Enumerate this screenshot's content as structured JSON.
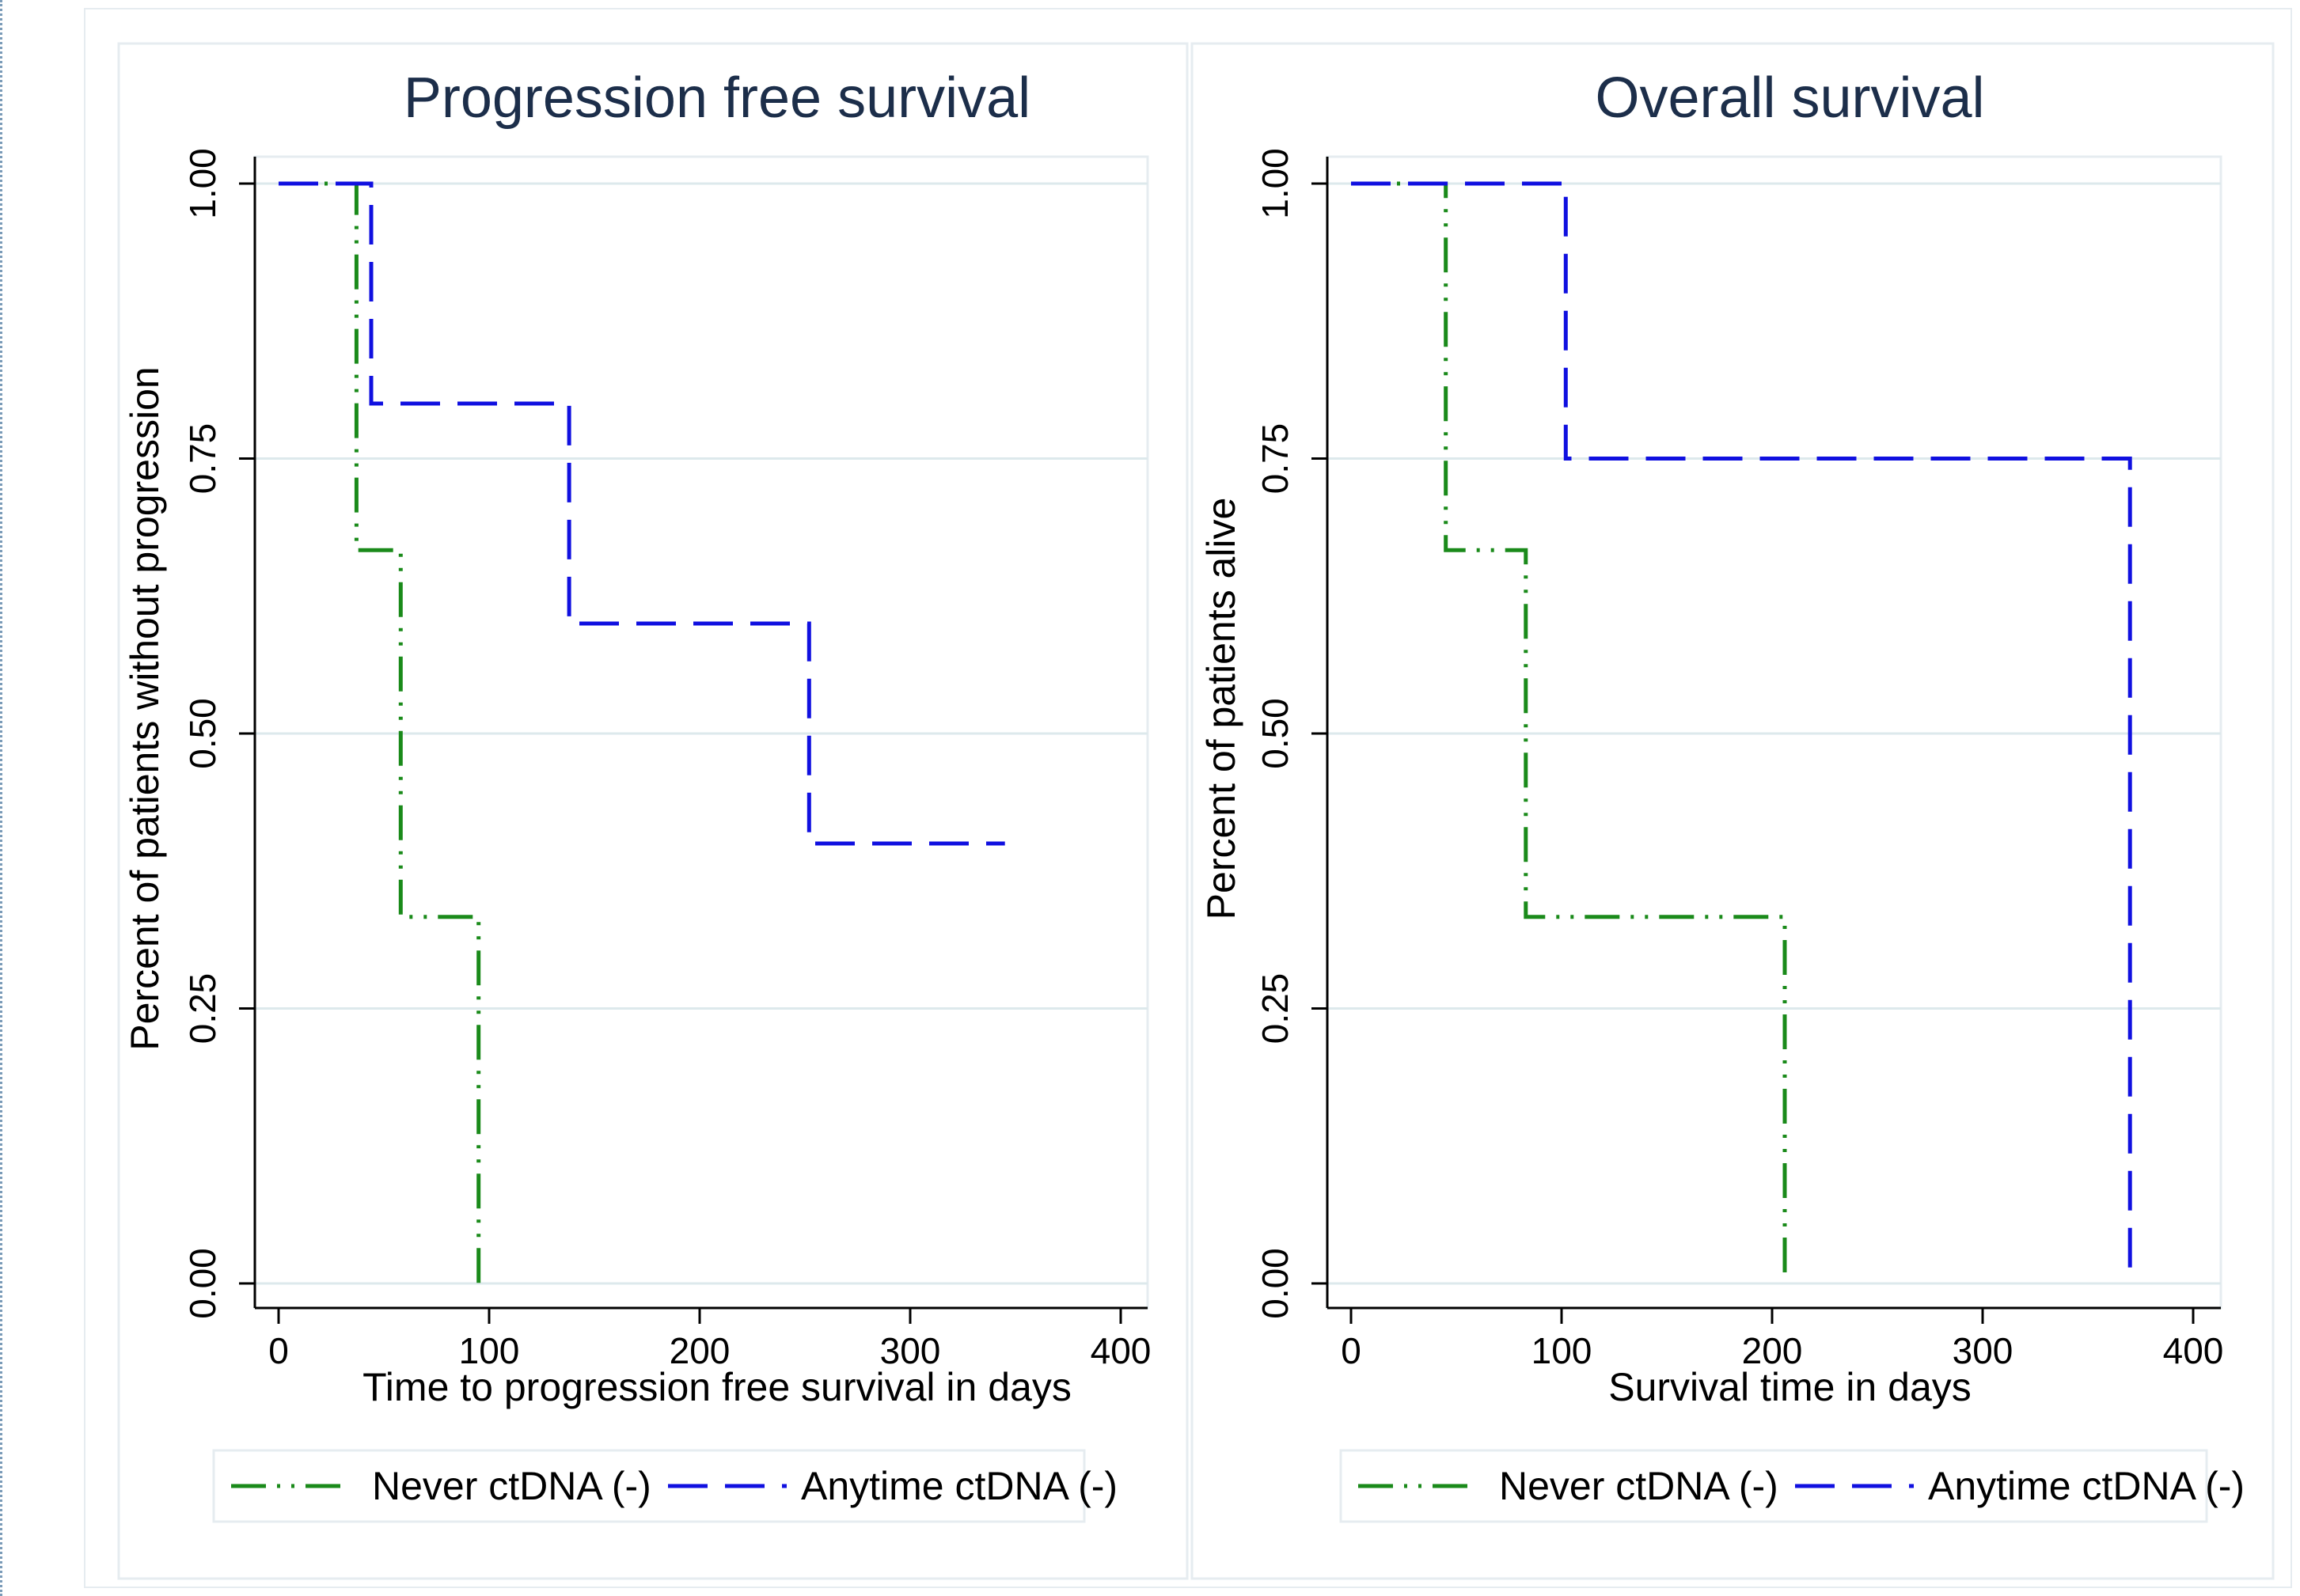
{
  "colors": {
    "never": "#1a8a1a",
    "anytime": "#1010e0",
    "grid": "#dde9ec",
    "title": "#1c2e4a"
  },
  "chart_data": [
    {
      "type": "line",
      "step": true,
      "title": "Progression free survival",
      "xlabel": "Time to progression free survival in days",
      "ylabel": "Percent of patients without progression",
      "xlim": [
        0,
        400
      ],
      "ylim": [
        0,
        1
      ],
      "xticks": [
        "0",
        "100",
        "200",
        "300",
        "400"
      ],
      "yticks": [
        "0.00",
        "0.25",
        "0.50",
        "0.75",
        "1.00"
      ],
      "grid": true,
      "legend_position": "bottom",
      "series": [
        {
          "name": "Never ctDNA (-)",
          "style": "dash-dot",
          "x": [
            0,
            37,
            37,
            58,
            58,
            95,
            95
          ],
          "y": [
            1,
            1,
            0.6667,
            0.6667,
            0.3333,
            0.3333,
            0
          ]
        },
        {
          "name": "Anytime ctDNA (-)",
          "style": "dash",
          "x": [
            0,
            44,
            44,
            138,
            138,
            252,
            252,
            345
          ],
          "y": [
            1,
            1,
            0.8,
            0.8,
            0.6,
            0.6,
            0.4,
            0.4
          ]
        }
      ]
    },
    {
      "type": "line",
      "step": true,
      "title": "Overall survival",
      "xlabel": "Survival time in days",
      "ylabel": "Percent of patients alive",
      "xlim": [
        0,
        400
      ],
      "ylim": [
        0,
        1
      ],
      "xticks": [
        "0",
        "100",
        "200",
        "300",
        "400"
      ],
      "yticks": [
        "0.00",
        "0.25",
        "0.50",
        "0.75",
        "1.00"
      ],
      "grid": true,
      "legend_position": "bottom",
      "series": [
        {
          "name": "Never ctDNA (-)",
          "style": "dash-dot",
          "x": [
            0,
            45,
            45,
            83,
            83,
            206,
            206
          ],
          "y": [
            1,
            1,
            0.6667,
            0.6667,
            0.3333,
            0.3333,
            0
          ]
        },
        {
          "name": "Anytime ctDNA (-)",
          "style": "dash",
          "x": [
            0,
            102,
            102,
            370,
            370
          ],
          "y": [
            1,
            1,
            0.75,
            0.75,
            0.01
          ]
        }
      ]
    }
  ]
}
